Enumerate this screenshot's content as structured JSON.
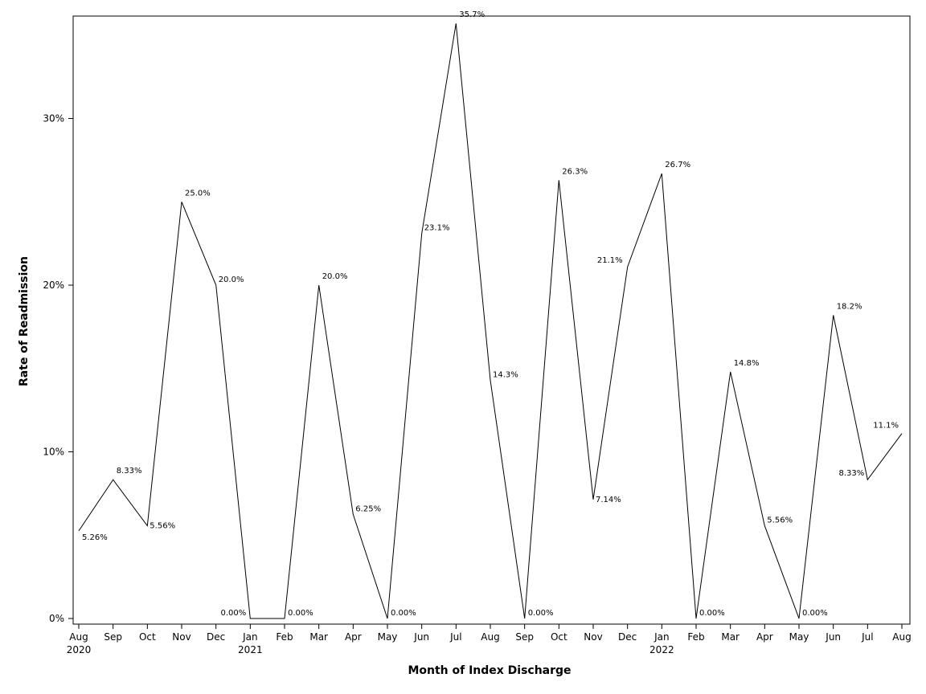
{
  "chart_data": {
    "type": "line",
    "title": "",
    "xlabel": "Month of Index Discharge",
    "ylabel": "Rate of Readmission",
    "ylim": [
      0,
      36
    ],
    "y_ticks": [
      0,
      10,
      20,
      30
    ],
    "y_tick_labels": [
      "0%",
      "10%",
      "20%",
      "30%"
    ],
    "grid": false,
    "x": [
      "Aug 2020",
      "Sep 2020",
      "Oct 2020",
      "Nov 2020",
      "Dec 2020",
      "Jan 2021",
      "Feb 2021",
      "Mar 2021",
      "Apr 2021",
      "May 2021",
      "Jun 2021",
      "Jul 2021",
      "Aug 2021",
      "Sep 2021",
      "Oct 2021",
      "Nov 2021",
      "Dec 2021",
      "Jan 2022",
      "Feb 2022",
      "Mar 2022",
      "Apr 2022",
      "May 2022",
      "Jun 2022",
      "Jul 2022",
      "Aug 2022"
    ],
    "x_tick_labels": [
      "Aug",
      "Sep",
      "Oct",
      "Nov",
      "Dec",
      "Jan",
      "Feb",
      "Mar",
      "Apr",
      "May",
      "Jun",
      "Jul",
      "Aug",
      "Sep",
      "Oct",
      "Nov",
      "Dec",
      "Jan",
      "Feb",
      "Mar",
      "Apr",
      "May",
      "Jun",
      "Jul",
      "Aug"
    ],
    "x_tick_year_labels": [
      "2020",
      "",
      "",
      "",
      "",
      "2021",
      "",
      "",
      "",
      "",
      "",
      "",
      "",
      "",
      "",
      "",
      "",
      "2022",
      "",
      "",
      "",
      "",
      "",
      "",
      ""
    ],
    "series": [
      {
        "values": [
          5.26,
          8.33,
          5.56,
          25.0,
          20.0,
          0,
          0,
          20.0,
          6.25,
          0,
          23.1,
          35.7,
          14.3,
          0,
          26.3,
          7.14,
          21.1,
          26.7,
          0,
          14.8,
          5.56,
          0,
          18.2,
          8.33,
          11.1
        ],
        "data_labels": [
          "5.26%",
          "8.33%",
          "5.56%",
          "25.0%",
          "20.0%",
          "0.00%",
          "0.00%",
          "20.0%",
          "6.25%",
          "0.00%",
          "23.1%",
          "35.7%",
          "14.3%",
          "0.00%",
          "26.3%",
          "7.14%",
          "21.1%",
          "26.7%",
          "0.00%",
          "14.8%",
          "5.56%",
          "0.00%",
          "18.2%",
          "8.33%",
          "11.1%"
        ],
        "color": "#000000"
      }
    ]
  }
}
